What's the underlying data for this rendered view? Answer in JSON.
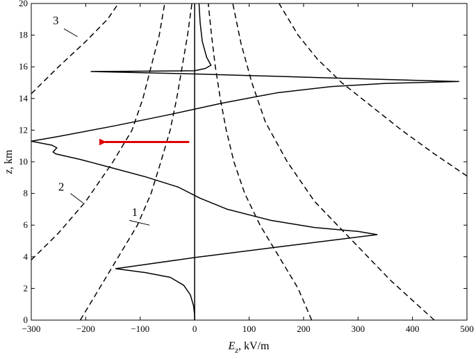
{
  "chart_data": {
    "type": "line",
    "xlabel_main": "E",
    "xlabel_sub": "z",
    "xlabel_rest": ", kV/m",
    "ylabel_main": "z",
    "ylabel_rest": ", km",
    "xlim": [
      -300,
      500
    ],
    "ylim": [
      0,
      20
    ],
    "xticks": [
      -300,
      -200,
      -100,
      0,
      100,
      200,
      300,
      400,
      500
    ],
    "yticks": [
      0,
      2,
      4,
      6,
      8,
      10,
      12,
      14,
      16,
      18,
      20
    ],
    "grid": false,
    "colors": {
      "curve": "#000000",
      "arrow": "#e00000"
    },
    "series": [
      {
        "style": "solid",
        "points": [
          [
            0,
            0
          ],
          [
            0,
            20
          ]
        ]
      },
      {
        "style": "solid",
        "points": [
          [
            0,
            0
          ],
          [
            0,
            0.3
          ],
          [
            -2,
            0.9
          ],
          [
            -8,
            1.6
          ],
          [
            -20,
            2.2
          ],
          [
            -45,
            2.7
          ],
          [
            -90,
            3.0
          ],
          [
            -145,
            3.25
          ],
          [
            0,
            3.95
          ],
          [
            160,
            4.65
          ],
          [
            335,
            5.4
          ],
          [
            300,
            5.6
          ],
          [
            220,
            5.85
          ],
          [
            140,
            6.3
          ],
          [
            60,
            7.0
          ],
          [
            10,
            7.7
          ],
          [
            -30,
            8.4
          ],
          [
            -90,
            9.05
          ],
          [
            -150,
            9.6
          ],
          [
            -210,
            10.15
          ],
          [
            -255,
            10.5
          ],
          [
            -260,
            10.62
          ],
          [
            -253,
            10.88
          ],
          [
            -262,
            11.05
          ],
          [
            -300,
            11.3
          ],
          [
            -250,
            11.6
          ],
          [
            -150,
            12.25
          ],
          [
            -50,
            12.95
          ],
          [
            50,
            13.7
          ],
          [
            150,
            14.35
          ],
          [
            250,
            14.75
          ],
          [
            350,
            14.95
          ],
          [
            485,
            15.07
          ],
          [
            250,
            15.3
          ],
          [
            0,
            15.55
          ],
          [
            -190,
            15.7
          ],
          [
            0,
            15.75
          ],
          [
            20,
            15.9
          ],
          [
            30,
            16.1
          ],
          [
            22,
            16.6
          ],
          [
            14,
            17.6
          ],
          [
            10,
            18.8
          ],
          [
            8,
            20
          ]
        ]
      },
      {
        "style": "dashed",
        "points": [
          [
            -210,
            0
          ],
          [
            -175,
            2.0
          ],
          [
            -140,
            4.0
          ],
          [
            -105,
            6.0
          ],
          [
            -80,
            8.0
          ],
          [
            -62,
            10.0
          ],
          [
            -45,
            12.0
          ],
          [
            -33,
            14.0
          ],
          [
            -23,
            16.0
          ],
          [
            -13,
            18.0
          ],
          [
            -5,
            20
          ]
        ]
      },
      {
        "style": "dashed",
        "points": [
          [
            -300,
            3.8
          ],
          [
            -250,
            5.5
          ],
          [
            -200,
            7.5
          ],
          [
            -150,
            10.0
          ],
          [
            -115,
            12.0
          ],
          [
            -95,
            14.0
          ],
          [
            -80,
            16.0
          ],
          [
            -65,
            18.0
          ],
          [
            -55,
            20
          ]
        ]
      },
      {
        "style": "dashed",
        "points": [
          [
            -300,
            14.3
          ],
          [
            -250,
            16.0
          ],
          [
            -200,
            17.6
          ],
          [
            -160,
            19.0
          ],
          [
            -140,
            20
          ]
        ]
      },
      {
        "style": "dashed",
        "points": [
          [
            215,
            0
          ],
          [
            190,
            2.0
          ],
          [
            155,
            4.0
          ],
          [
            120,
            6.0
          ],
          [
            92,
            8.0
          ],
          [
            72,
            10.0
          ],
          [
            58,
            12.0
          ],
          [
            47,
            14.0
          ],
          [
            38,
            16.0
          ],
          [
            31,
            18.0
          ],
          [
            25,
            20
          ]
        ]
      },
      {
        "style": "dashed",
        "points": [
          [
            440,
            0
          ],
          [
            360,
            2.5
          ],
          [
            290,
            5.0
          ],
          [
            220,
            7.5
          ],
          [
            170,
            10.0
          ],
          [
            130,
            12.5
          ],
          [
            105,
            15.0
          ],
          [
            85,
            17.5
          ],
          [
            70,
            20
          ]
        ]
      },
      {
        "style": "dashed",
        "points": [
          [
            500,
            9.1
          ],
          [
            440,
            10.5
          ],
          [
            380,
            12.0
          ],
          [
            325,
            13.5
          ],
          [
            270,
            15.0
          ],
          [
            225,
            16.5
          ],
          [
            190,
            18.0
          ],
          [
            155,
            20
          ]
        ]
      }
    ],
    "labels": [
      {
        "text": "1",
        "x": -110,
        "y": 6.8,
        "leader": [
          [
            -120,
            6.3
          ],
          [
            -83,
            6.0
          ]
        ]
      },
      {
        "text": "2",
        "x": -245,
        "y": 8.4,
        "leader": [
          [
            -228,
            8.0
          ],
          [
            -205,
            7.4
          ]
        ]
      },
      {
        "text": "3",
        "x": -255,
        "y": 18.9,
        "leader": [
          [
            -240,
            18.4
          ],
          [
            -215,
            17.9
          ]
        ]
      }
    ],
    "arrow": {
      "from": [
        -10,
        11.25
      ],
      "to": [
        -165,
        11.25
      ]
    }
  }
}
